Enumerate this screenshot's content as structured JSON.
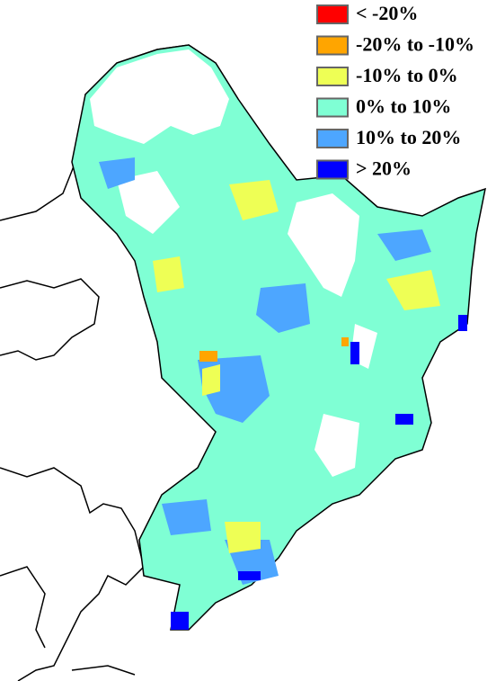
{
  "legend": [
    {
      "label": "< -20%",
      "color": "#ff0000"
    },
    {
      "label": "-20% to -10%",
      "color": "#ffa500"
    },
    {
      "label": "-10% to 0%",
      "color": "#eeff55"
    },
    {
      "label": "0% to 10%",
      "color": "#7fffd4"
    },
    {
      "label": "10% to 20%",
      "color": "#4da6ff"
    },
    {
      "label": "> 20%",
      "color": "#0000ff"
    }
  ]
}
